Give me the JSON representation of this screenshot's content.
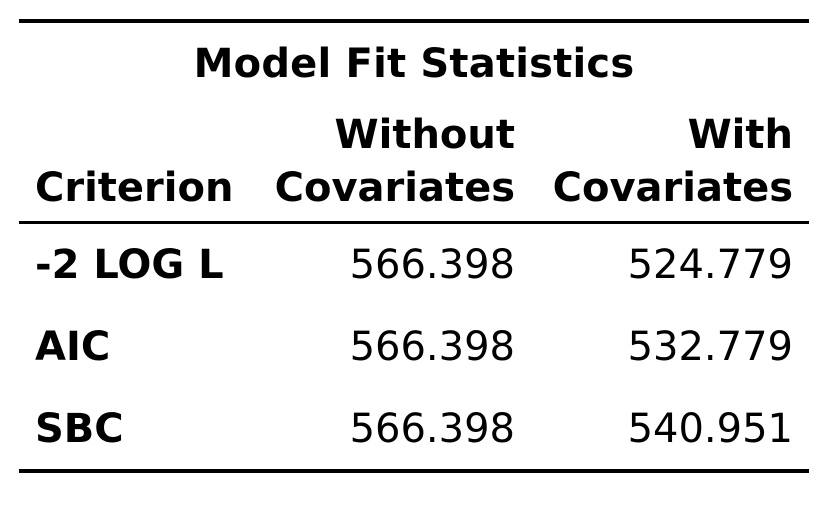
{
  "table": {
    "title": "Model Fit Statistics",
    "headers": {
      "criterion": "Criterion",
      "without_line1": "Without",
      "without_line2": "Covariates",
      "with_line1": "With",
      "with_line2": "Covariates"
    },
    "rows": [
      {
        "criterion": "-2 LOG L",
        "without": "566.398",
        "with": "524.779"
      },
      {
        "criterion": "AIC",
        "without": "566.398",
        "with": "532.779"
      },
      {
        "criterion": "SBC",
        "without": "566.398",
        "with": "540.951"
      }
    ]
  }
}
